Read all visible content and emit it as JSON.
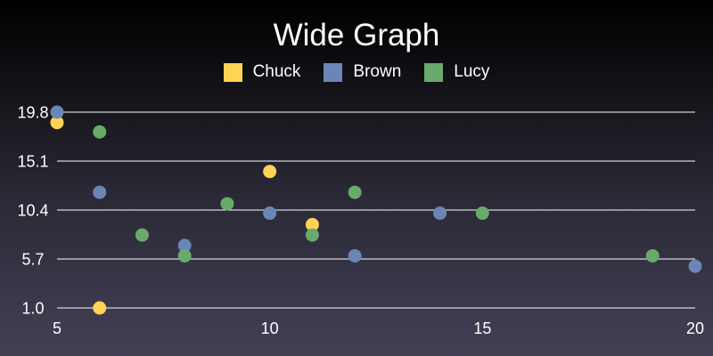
{
  "chart_data": {
    "type": "scatter",
    "title": "Wide Graph",
    "xlabel": "",
    "ylabel": "",
    "xlim": [
      5,
      20
    ],
    "ylim": [
      1.0,
      19.8
    ],
    "x_ticks": [
      "5",
      "10",
      "15",
      "20"
    ],
    "x_tick_values": [
      5,
      10,
      15,
      20
    ],
    "y_ticks": [
      "1.0",
      "5.7",
      "10.4",
      "15.1",
      "19.8"
    ],
    "y_tick_values": [
      1.0,
      5.7,
      10.4,
      15.1,
      19.8
    ],
    "grid": "horizontal",
    "legend": "top-center",
    "series": [
      {
        "name": "Chuck",
        "color": "#ffd455",
        "points": [
          [
            5,
            18.8
          ],
          [
            6,
            1.0
          ],
          [
            10,
            14.1
          ],
          [
            11,
            9.0
          ]
        ]
      },
      {
        "name": "Brown",
        "color": "#6b86b6",
        "points": [
          [
            5,
            19.8
          ],
          [
            6,
            12.1
          ],
          [
            8,
            7.0
          ],
          [
            10,
            10.1
          ],
          [
            12,
            6.0
          ],
          [
            14,
            10.1
          ],
          [
            20,
            5.0
          ]
        ]
      },
      {
        "name": "Lucy",
        "color": "#6aa96c",
        "points": [
          [
            6,
            17.9
          ],
          [
            7,
            8.0
          ],
          [
            8,
            6.0
          ],
          [
            9,
            11.0
          ],
          [
            11,
            8.0
          ],
          [
            12,
            12.1
          ],
          [
            15,
            10.1
          ],
          [
            19,
            6.0
          ]
        ]
      }
    ]
  }
}
